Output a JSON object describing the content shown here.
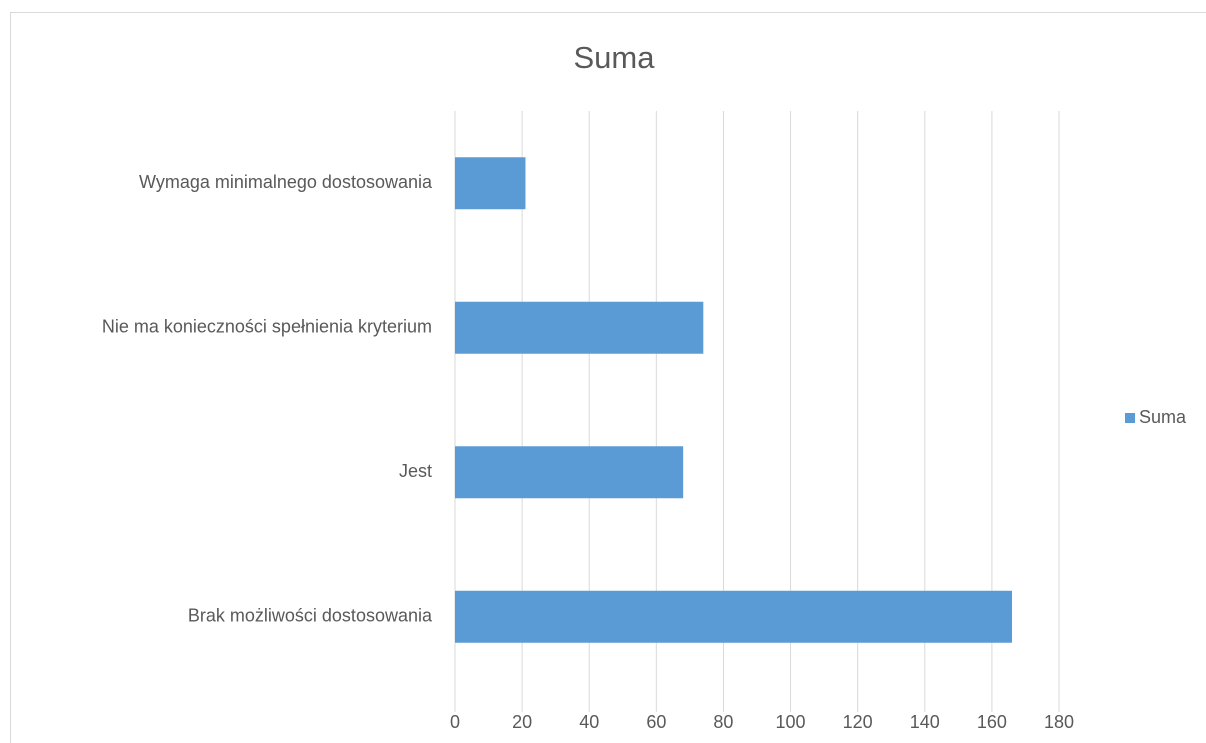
{
  "chart_data": {
    "type": "barh",
    "title": "Suma",
    "categories": [
      "Wymaga minimalnego dostosowania",
      "Nie ma konieczności spełnienia kryterium",
      "Jest",
      "Brak możliwości dostosowania"
    ],
    "series": [
      {
        "name": "Suma",
        "color": "#5b9bd5",
        "values": [
          21,
          74,
          68,
          166
        ]
      }
    ],
    "xlim": [
      0,
      180
    ],
    "xticks": [
      0,
      20,
      40,
      60,
      80,
      100,
      120,
      140,
      160,
      180
    ],
    "grid": true,
    "legend": "right"
  }
}
